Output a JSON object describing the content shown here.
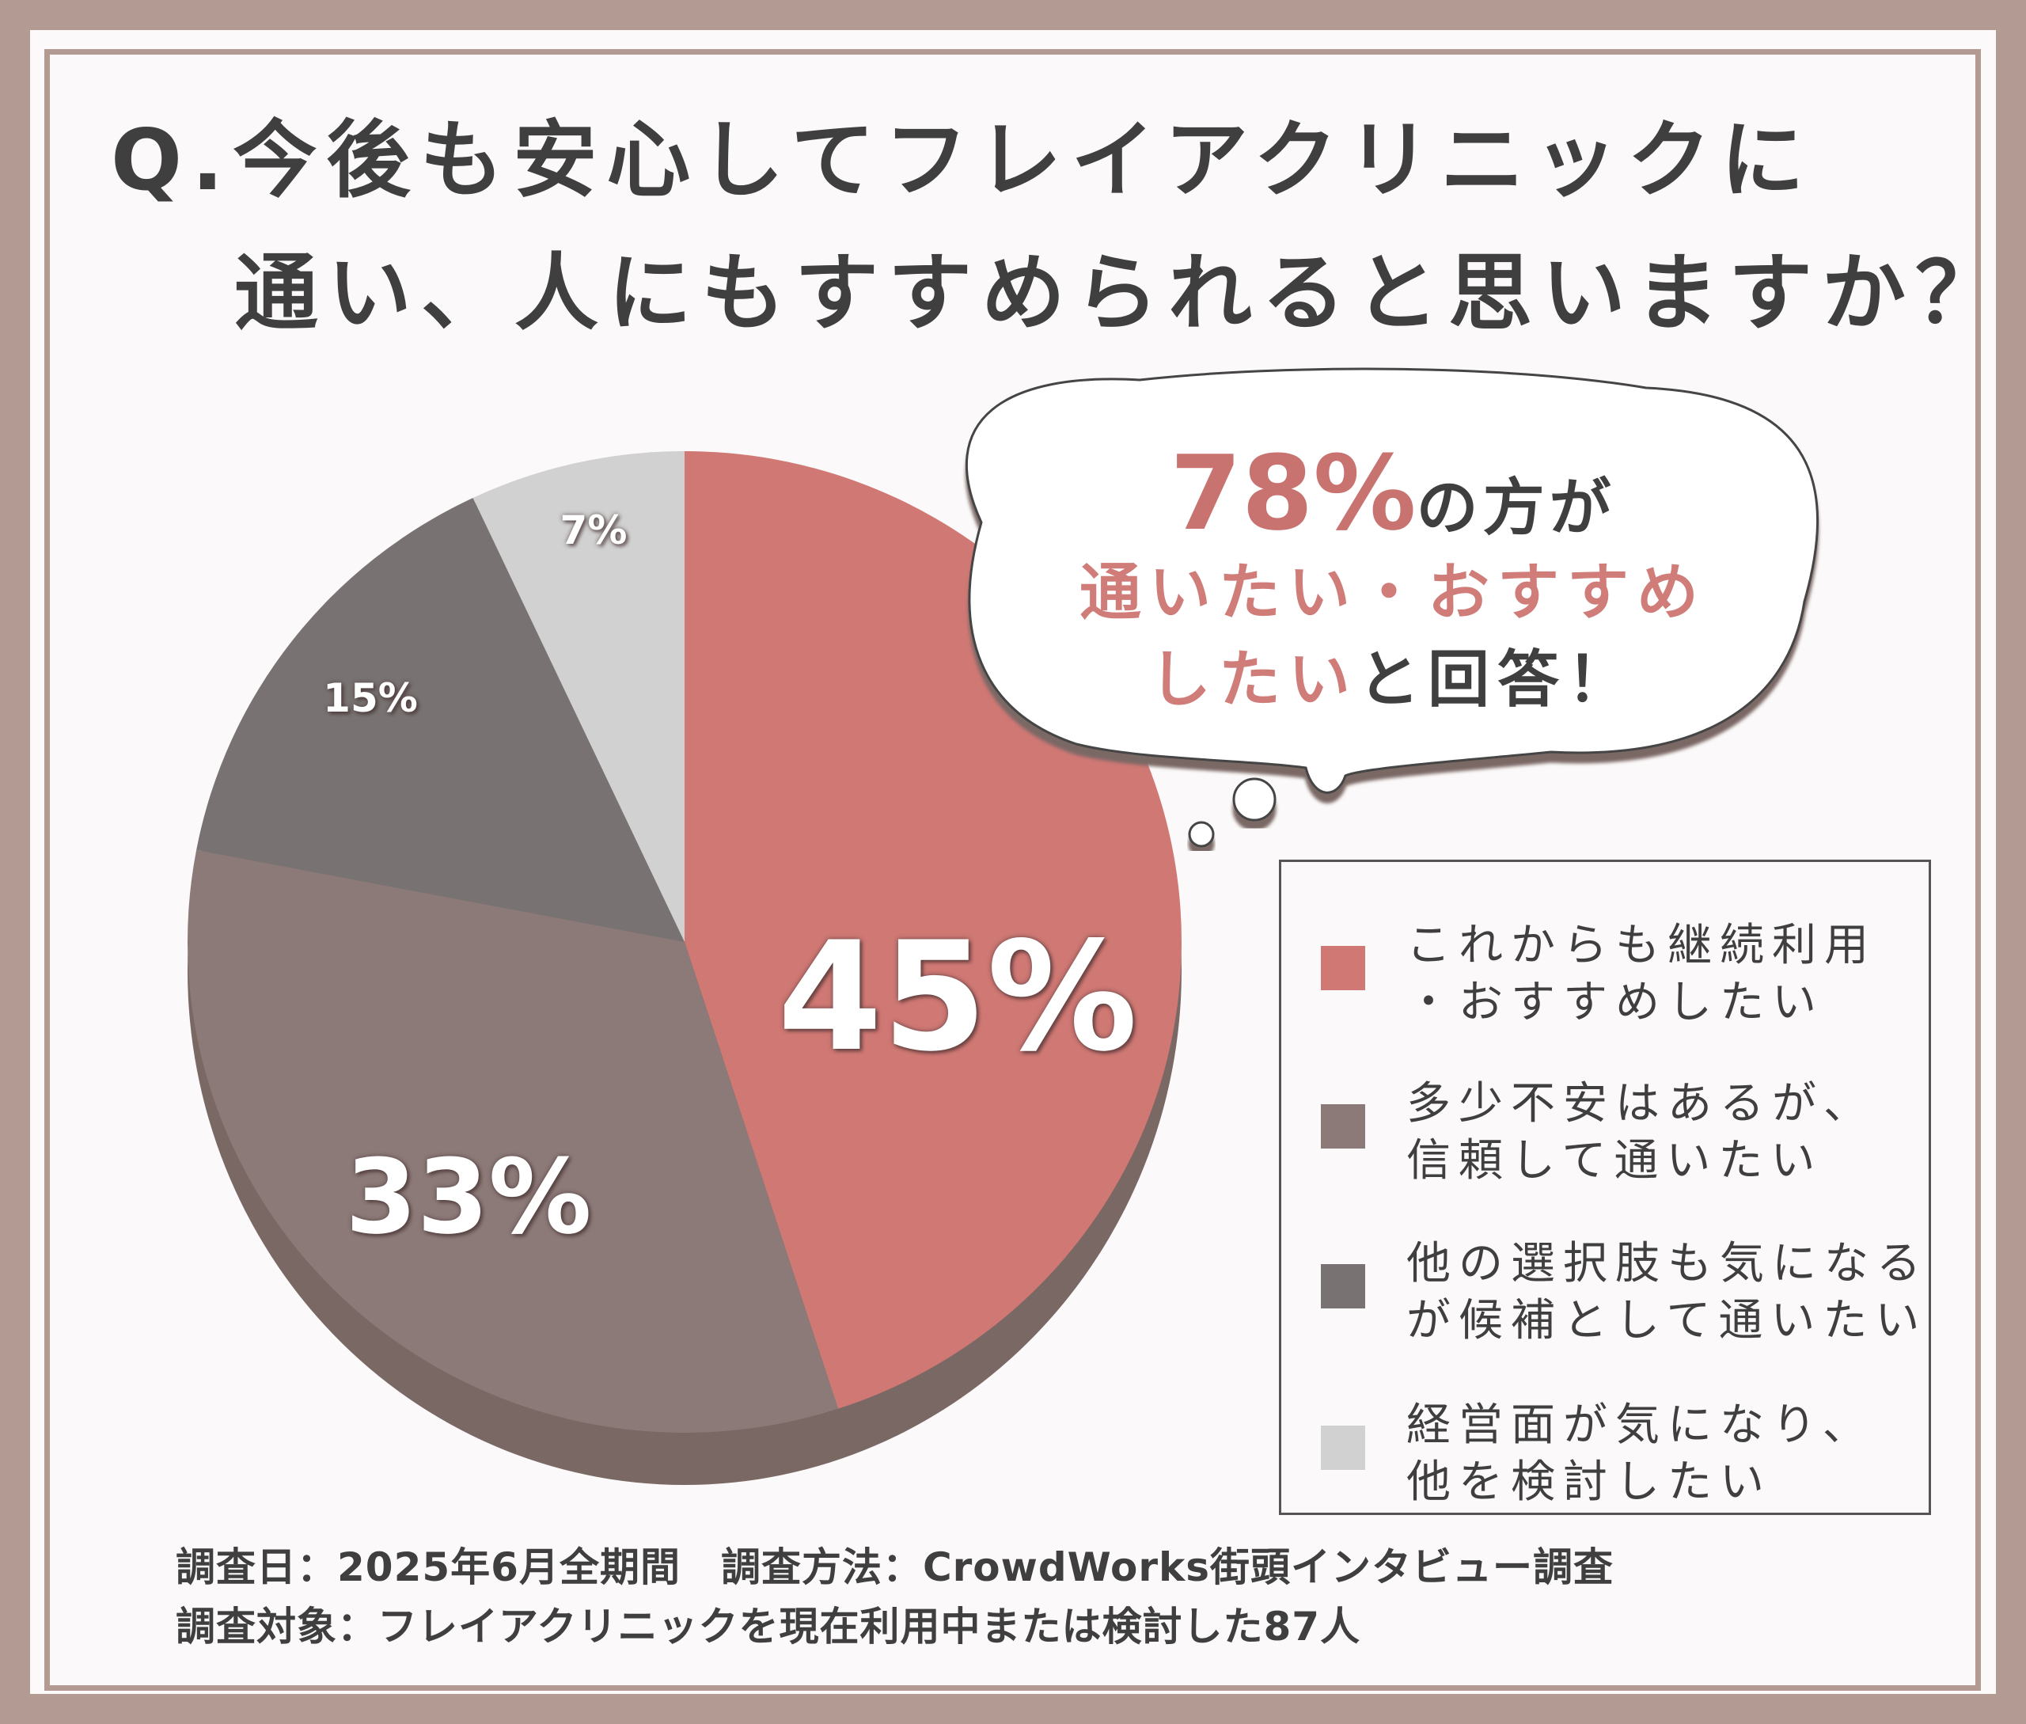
{
  "title": {
    "line1": "Q.今後も安心してフレイアクリニックに",
    "line2": "通い、人にもすすめられると思いますか？"
  },
  "chart_data": {
    "type": "pie",
    "categories": [
      "これからも継続利用・おすすめしたい",
      "多少不安はあるが、信頼して通いたい",
      "他の選択肢も気になるが候補として通いたい",
      "経営面が気になり、他を検討したい"
    ],
    "values": [
      45,
      33,
      15,
      7
    ],
    "data_labels": [
      "45%",
      "33%",
      "15%",
      "7%"
    ],
    "colors": [
      "#cf7874",
      "#8c7a78",
      "#787372",
      "#d1d1d1"
    ],
    "start_angle_deg": 0,
    "direction": "clockwise",
    "legend_placement": "right"
  },
  "callout": {
    "big_number": "78%",
    "big_suffix": "の方が",
    "highlight_line": "通いたい・おすすめ",
    "highlight_tail": "したい",
    "rest": "と回答！"
  },
  "legend": {
    "items": [
      {
        "line1": "これからも継続利用",
        "line2": "・おすすめしたい",
        "color": "#cf7874"
      },
      {
        "line1": "多少不安はあるが、",
        "line2": "信頼して通いたい",
        "color": "#8c7a78"
      },
      {
        "line1": "他の選択肢も気になる",
        "line2": "が候補として通いたい",
        "color": "#787372"
      },
      {
        "line1": "経営面が気になり、",
        "line2": "他を検討したい",
        "color": "#d1d1d1"
      }
    ]
  },
  "footer": {
    "line1": "調査日：2025年6月全期間　調査方法：CrowdWorks街頭インタビュー調査",
    "line2": "調査対象：フレイアクリニックを現在利用中または検討した87人"
  }
}
